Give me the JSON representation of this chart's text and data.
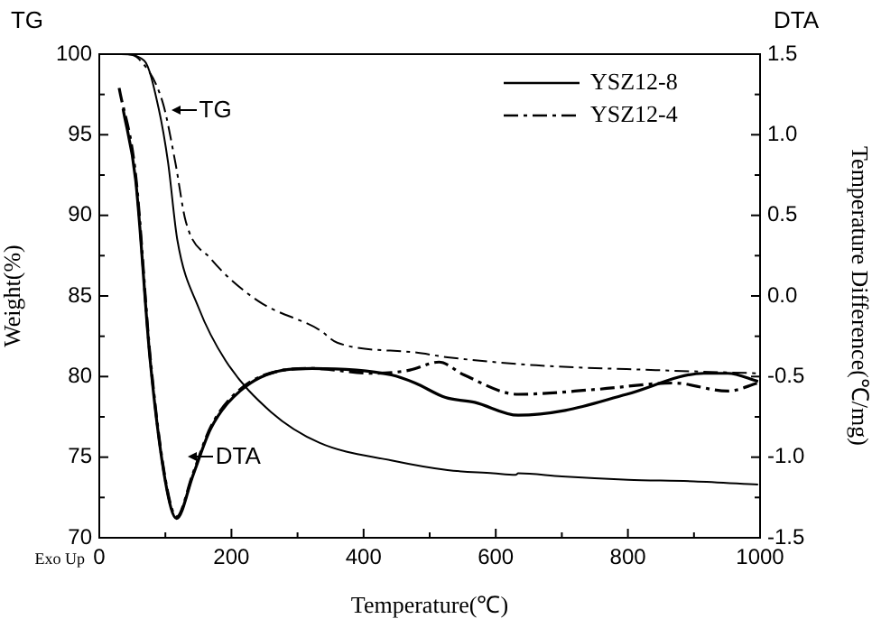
{
  "chart_data": {
    "type": "line",
    "xlabel": "Temperature(℃)",
    "ylabel": "Weight(%)",
    "y2label": "Temperature Difference(℃/mg)",
    "xlim": [
      0,
      1000
    ],
    "xticks": [
      0,
      200,
      400,
      600,
      800,
      1000
    ],
    "ylim": [
      70,
      100
    ],
    "yticks": [
      70,
      75,
      80,
      85,
      90,
      95,
      100
    ],
    "y2lim": [
      -1.5,
      1.5
    ],
    "y2ticks": [
      {
        "value": -1.5,
        "label": "-1.5"
      },
      {
        "value": -1,
        "label": "-1.0"
      },
      -0.5,
      {
        "value": 0,
        "label": "0.0"
      },
      0.5,
      {
        "value": 1,
        "label": "1.0"
      },
      1.5
    ],
    "legend": "top right",
    "grid": false,
    "annotations": [
      "TG",
      "DTA",
      "Exo Up",
      {
        "text": "TG",
        "x": 110,
        "y": 96.5
      },
      {
        "text": "DTA",
        "x": 135,
        "y": 75
      }
    ],
    "series": [
      {
        "name": "YSZ12-8",
        "color": "#000000",
        "line_style": "solid",
        "x": [
          0,
          33,
          68,
          90,
          104,
          118,
          150,
          191,
          260,
          333,
          442,
          527,
          596,
          630,
          634,
          700,
          800,
          900,
          997
        ],
        "values": [
          100,
          100,
          99.6,
          96.6,
          93.3,
          88.5,
          84.3,
          81,
          77.8,
          75.9,
          74.8,
          74.2,
          74,
          73.9,
          74,
          73.8,
          73.6,
          73.5,
          73.3
        ]
      },
      {
        "name": "YSZ12-4",
        "color": "#000000",
        "line_style": "dashed",
        "x": [
          0,
          40,
          60,
          96,
          115,
          131,
          169,
          240,
          333,
          360,
          478,
          527,
          661,
          842,
          997
        ],
        "values": [
          100,
          100,
          99.7,
          97,
          93.3,
          89.6,
          87.3,
          84.7,
          82.9,
          82.1,
          81.5,
          81.2,
          80.7,
          80.4,
          80.2
        ]
      },
      {
        "color": "#000000",
        "line_style": "solid",
        "axis": "y2",
        "x": [
          36,
          55,
          77,
          100,
          117,
          142,
          169,
          213,
          279,
          322,
          442,
          478,
          524,
          568,
          634,
          705,
          798,
          915,
          951,
          997
        ],
        "values": [
          1.16,
          0.72,
          -0.4,
          -1.15,
          -1.38,
          -1.11,
          -0.82,
          -0.59,
          -0.46,
          -0.45,
          -0.49,
          -0.54,
          -0.63,
          -0.66,
          -0.74,
          -0.71,
          -0.61,
          -0.48,
          -0.48,
          -0.53
        ]
      },
      {
        "color": "#000000",
        "line_style": "dashed",
        "axis": "y2",
        "x": [
          30,
          55,
          77,
          100,
          117,
          142,
          169,
          213,
          279,
          322,
          415,
          470,
          514,
          552,
          634,
          751,
          869,
          951,
          997
        ],
        "values": [
          1.29,
          0.75,
          -0.38,
          -1.14,
          -1.37,
          -1.1,
          -0.81,
          -0.58,
          -0.46,
          -0.45,
          -0.48,
          -0.46,
          -0.41,
          -0.49,
          -0.61,
          -0.58,
          -0.54,
          -0.59,
          -0.54
        ]
      }
    ]
  }
}
